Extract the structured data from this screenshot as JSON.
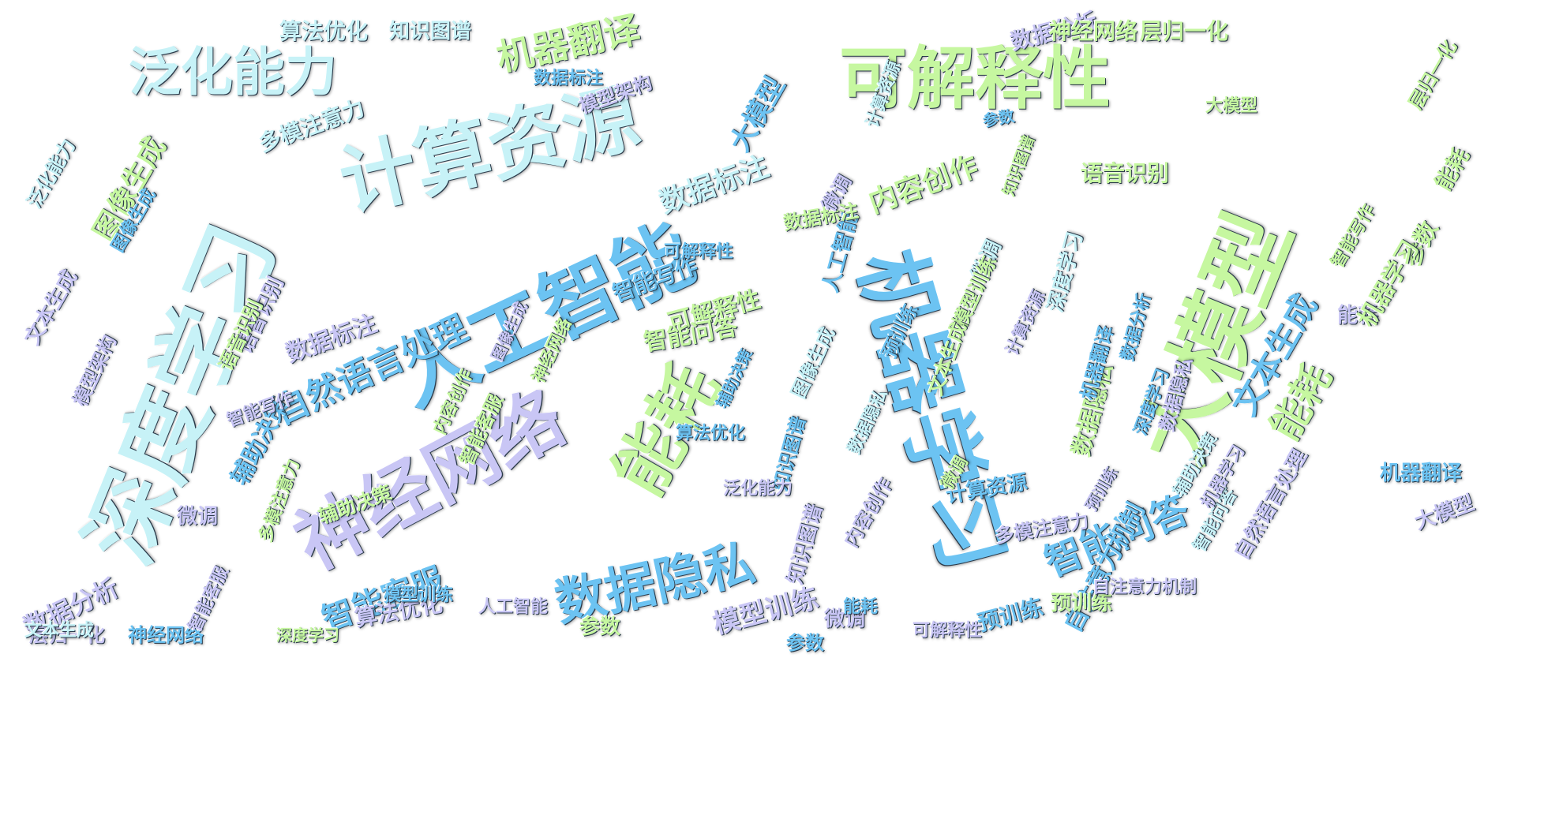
{
  "palette": {
    "sky": "#6cc3f2",
    "lime": "#c6f7a0",
    "lavender": "#c9c6f5",
    "ice": "#c7f2f7",
    "outline": "#2a3a4a",
    "background": "#ffffff"
  },
  "words": [
    {
      "text": "人工智能",
      "color": "sky"
    },
    {
      "text": "深度学习",
      "color": "ice"
    },
    {
      "text": "大模型",
      "color": "lime"
    },
    {
      "text": "机器学习",
      "color": "sky"
    },
    {
      "text": "神经网络",
      "color": "lavender"
    },
    {
      "text": "计算资源",
      "color": "ice"
    },
    {
      "text": "可解释性",
      "color": "lime"
    },
    {
      "text": "泛化能力",
      "color": "ice"
    },
    {
      "text": "能耗",
      "color": "lime"
    },
    {
      "text": "能耗",
      "color": "lime"
    },
    {
      "text": "数据隐私",
      "color": "sky"
    },
    {
      "text": "机器翻译",
      "color": "lime"
    },
    {
      "text": "自然语言处理",
      "color": "sky"
    },
    {
      "text": "智能问答",
      "color": "sky"
    },
    {
      "text": "文本生成",
      "color": "sky"
    },
    {
      "text": "图像生成",
      "color": "lime"
    },
    {
      "text": "内容创作",
      "color": "lime"
    },
    {
      "text": "数据标注",
      "color": "ice"
    },
    {
      "text": "智能客服",
      "color": "sky"
    },
    {
      "text": "多模注意力",
      "color": "ice"
    },
    {
      "text": "大模型",
      "color": "sky"
    },
    {
      "text": "可解释性",
      "color": "lime"
    },
    {
      "text": "数据分析",
      "color": "lavender"
    },
    {
      "text": "神经网络",
      "color": "lime"
    },
    {
      "text": "层归一化",
      "color": "lime"
    },
    {
      "text": "语音识别",
      "color": "lime"
    },
    {
      "text": "数据隐私",
      "color": "lime"
    },
    {
      "text": "预训练",
      "color": "sky"
    },
    {
      "text": "模型训练",
      "color": "lavender"
    },
    {
      "text": "算法优化",
      "color": "ice"
    },
    {
      "text": "知识图谱",
      "color": "ice"
    },
    {
      "text": "微调",
      "color": "ice"
    },
    {
      "text": "参数",
      "color": "lime"
    },
    {
      "text": "辅助决策",
      "color": "sky"
    },
    {
      "text": "自注意力机制",
      "color": "sky"
    },
    {
      "text": "数据标注",
      "color": "lavender"
    },
    {
      "text": "智能写作",
      "color": "sky"
    },
    {
      "text": "计算资源",
      "color": "sky"
    },
    {
      "text": "人工智能",
      "color": "sky"
    },
    {
      "text": "数据分析",
      "color": "lavender"
    },
    {
      "text": "算法优化",
      "color": "lavender"
    },
    {
      "text": "大模型",
      "color": "lavender"
    },
    {
      "text": "模型训练",
      "color": "lime"
    },
    {
      "text": "预训练",
      "color": "lime"
    },
    {
      "text": "微调",
      "color": "lavender"
    },
    {
      "text": "参数",
      "color": "sky"
    },
    {
      "text": "智能问答",
      "color": "lime"
    },
    {
      "text": "数据标注",
      "color": "lime"
    },
    {
      "text": "模型架构",
      "color": "lavender"
    },
    {
      "text": "层归一化",
      "color": "lavender"
    },
    {
      "text": "图像生成",
      "color": "sky"
    },
    {
      "text": "微调",
      "color": "lavender"
    },
    {
      "text": "能耗",
      "color": "lavender"
    },
    {
      "text": "可解释性",
      "color": "sky"
    },
    {
      "text": "深度学习",
      "color": "ice"
    },
    {
      "text": "知识图谱",
      "color": "lavender"
    },
    {
      "text": "语音识别",
      "color": "lavender"
    },
    {
      "text": "机器学习",
      "color": "lime"
    },
    {
      "text": "神经网络",
      "color": "sky"
    },
    {
      "text": "泛化能力",
      "color": "ice"
    },
    {
      "text": "自然语言处理",
      "color": "lavender"
    },
    {
      "text": "文本生成",
      "color": "lavender"
    },
    {
      "text": "数据隐私",
      "color": "lavender"
    },
    {
      "text": "机器翻译",
      "color": "sky"
    },
    {
      "text": "内容创作",
      "color": "lavender"
    },
    {
      "text": "辅助决策",
      "color": "lime"
    },
    {
      "text": "智能客服",
      "color": "lime"
    },
    {
      "text": "多模注意力",
      "color": "lavender"
    },
    {
      "text": "智能写作",
      "color": "lavender"
    },
    {
      "text": "计算资源",
      "color": "ice"
    },
    {
      "text": "参数",
      "color": "lime"
    },
    {
      "text": "模型架构",
      "color": "lavender"
    },
    {
      "text": "深度学习",
      "color": "sky"
    },
    {
      "text": "能耗",
      "color": "lime"
    },
    {
      "text": "微调",
      "color": "lavender"
    },
    {
      "text": "预训练",
      "color": "sky"
    },
    {
      "text": "机器翻译",
      "color": "sky"
    },
    {
      "text": "文本生成",
      "color": "lime"
    },
    {
      "text": "智能问答",
      "color": "ice"
    },
    {
      "text": "人工智能",
      "color": "lavender"
    },
    {
      "text": "辅助决策",
      "color": "ice"
    },
    {
      "text": "数据分析",
      "color": "sky"
    },
    {
      "text": "层归一化",
      "color": "lime"
    },
    {
      "text": "自注意力机制",
      "color": "lavender"
    },
    {
      "text": "知识图谱",
      "color": "sky"
    },
    {
      "text": "图像生成",
      "color": "ice"
    },
    {
      "text": "语音识别",
      "color": "lime"
    },
    {
      "text": "大模型",
      "color": "lime"
    },
    {
      "text": "算法优化",
      "color": "sky"
    },
    {
      "text": "可解释性",
      "color": "lavender"
    },
    {
      "text": "内容创作",
      "color": "lime"
    },
    {
      "text": "数据隐私",
      "color": "ice"
    },
    {
      "text": "神经网络",
      "color": "lime"
    },
    {
      "text": "模型训练",
      "color": "sky"
    },
    {
      "text": "泛化能力",
      "color": "lavender"
    },
    {
      "text": "智能客服",
      "color": "lavender"
    },
    {
      "text": "多模注意力",
      "color": "lime"
    },
    {
      "text": "机器学习",
      "color": "lavender"
    },
    {
      "text": "参数",
      "color": "sky"
    },
    {
      "text": "微调",
      "color": "lime"
    },
    {
      "text": "能耗",
      "color": "sky"
    },
    {
      "text": "文本生成",
      "color": "ice"
    },
    {
      "text": "智能写作",
      "color": "lime"
    },
    {
      "text": "数据标注",
      "color": "sky"
    },
    {
      "text": "计算资源",
      "color": "lavender"
    },
    {
      "text": "深度学习",
      "color": "lime"
    },
    {
      "text": "预训练",
      "color": "lavender"
    },
    {
      "text": "图像生成",
      "color": "lavender"
    },
    {
      "text": "知识图谱",
      "color": "lime"
    },
    {
      "text": "辅助决策",
      "color": "sky"
    }
  ]
}
